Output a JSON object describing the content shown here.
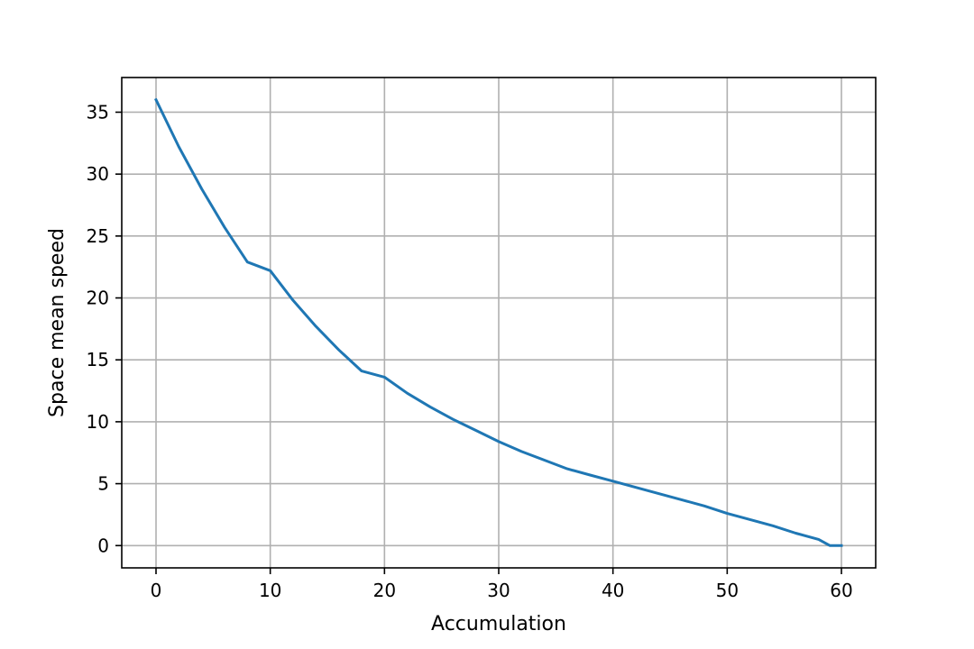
{
  "chart_data": {
    "type": "line",
    "title": "",
    "xlabel": "Accumulation",
    "ylabel": "Space mean speed",
    "xlim": [
      -3,
      63
    ],
    "ylim": [
      -1.8,
      37.8
    ],
    "xticks": [
      0,
      10,
      20,
      30,
      40,
      50,
      60
    ],
    "yticks": [
      0,
      5,
      10,
      15,
      20,
      25,
      30,
      35
    ],
    "grid": true,
    "legend": "none",
    "colors": {
      "line": "#1f77b4",
      "grid": "#b0b0b0"
    },
    "series": [
      {
        "x": [
          0,
          2,
          4,
          6,
          8,
          10,
          12,
          14,
          16,
          18,
          20,
          22,
          24,
          26,
          28,
          30,
          32,
          34,
          36,
          38,
          40,
          42,
          44,
          46,
          48,
          50,
          52,
          54,
          56,
          58,
          59,
          60
        ],
        "values": [
          36.0,
          32.2,
          28.8,
          25.7,
          22.9,
          22.2,
          19.8,
          17.7,
          15.8,
          14.1,
          13.6,
          12.3,
          11.2,
          10.2,
          9.3,
          8.4,
          7.6,
          6.9,
          6.2,
          5.7,
          5.2,
          4.7,
          4.2,
          3.7,
          3.2,
          2.6,
          2.1,
          1.6,
          1.0,
          0.5,
          0.0,
          0.0
        ]
      }
    ]
  }
}
